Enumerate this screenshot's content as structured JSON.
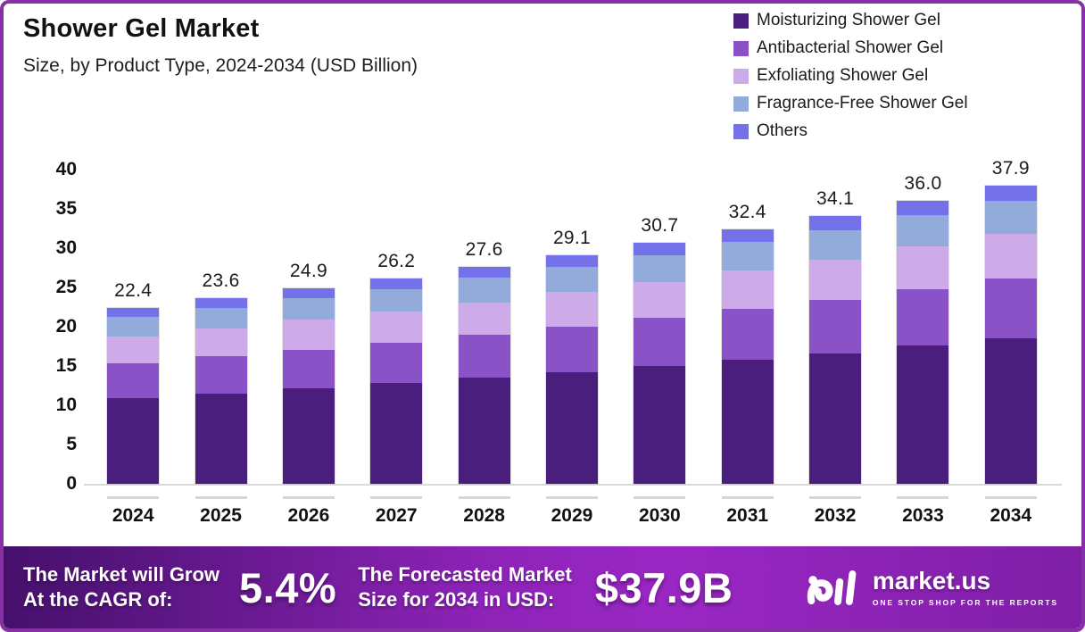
{
  "header": {
    "title": "Shower Gel Market",
    "subtitle": "Size, by Product Type, 2024-2034 (USD Billion)"
  },
  "chart_data": {
    "type": "bar",
    "stacked": true,
    "title": "Shower Gel Market",
    "subtitle": "Size, by Product Type, 2024-2034 (USD Billion)",
    "xlabel": "",
    "ylabel": "USD Billion",
    "ylim": [
      0,
      40
    ],
    "ytick_step": 5,
    "grid": false,
    "legend_position": "top-right",
    "categories": [
      "2024",
      "2025",
      "2026",
      "2027",
      "2028",
      "2029",
      "2030",
      "2031",
      "2032",
      "2033",
      "2034"
    ],
    "series": [
      {
        "name": "Moisturizing Shower Gel",
        "color": "#491E7D",
        "values": [
          10.9,
          11.5,
          12.2,
          12.8,
          13.5,
          14.2,
          15.0,
          15.8,
          16.6,
          17.6,
          18.5
        ]
      },
      {
        "name": "Antibacterial Shower Gel",
        "color": "#8A52C7",
        "values": [
          4.5,
          4.7,
          4.9,
          5.2,
          5.5,
          5.8,
          6.1,
          6.5,
          6.8,
          7.2,
          7.6
        ]
      },
      {
        "name": "Exfoliating Shower Gel",
        "color": "#CDABE9",
        "values": [
          3.4,
          3.6,
          3.8,
          3.9,
          4.1,
          4.4,
          4.6,
          4.9,
          5.1,
          5.4,
          5.7
        ]
      },
      {
        "name": "Fragrance-Free Shower Gel",
        "color": "#92ABDB",
        "values": [
          2.5,
          2.6,
          2.7,
          2.9,
          3.1,
          3.2,
          3.4,
          3.6,
          3.8,
          4.0,
          4.2
        ]
      },
      {
        "name": "Others",
        "color": "#7571E8",
        "values": [
          1.1,
          1.2,
          1.3,
          1.4,
          1.4,
          1.5,
          1.6,
          1.6,
          1.8,
          1.8,
          1.9
        ]
      }
    ],
    "totals": [
      22.4,
      23.6,
      24.9,
      26.2,
      27.6,
      29.1,
      30.7,
      32.4,
      34.1,
      36.0,
      37.9
    ],
    "total_labels": [
      "22.4",
      "23.6",
      "24.9",
      "26.2",
      "27.6",
      "29.1",
      "30.7",
      "32.4",
      "34.1",
      "36.0",
      "37.9"
    ]
  },
  "banner": {
    "cagr_line1": "The Market will Grow",
    "cagr_line2": "At the CAGR of:",
    "cagr_value": "5.4%",
    "forecast_line1": "The Forecasted Market",
    "forecast_line2": "Size for 2034 in USD:",
    "forecast_value": "$37.9B",
    "logo_text": "market.us",
    "logo_tagline": "ONE STOP SHOP FOR THE REPORTS",
    "gradient_stops": [
      "#45106B 0%",
      "#8E23B8 45%",
      "#9A27C4 62%",
      "#7E1FA6 100%"
    ]
  },
  "frame": {
    "border_color": "#8530A5",
    "axis_color": "#dadada"
  }
}
